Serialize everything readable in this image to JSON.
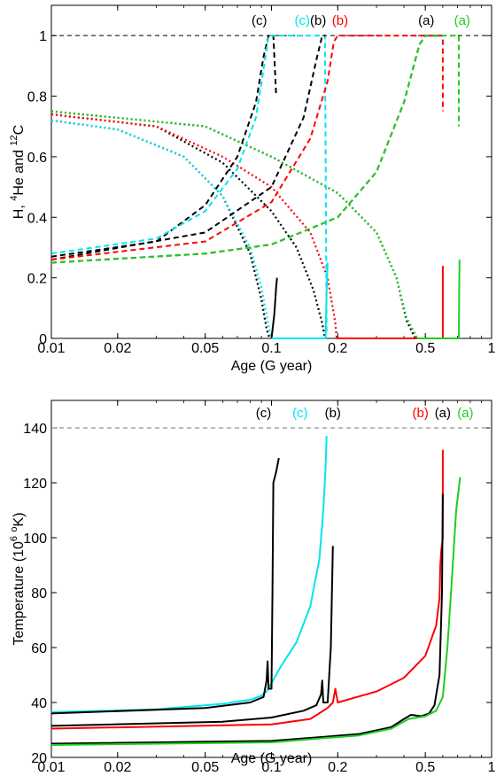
{
  "chart_data": [
    {
      "type": "line",
      "xlabel": "Age   (G year)",
      "ylabel": {
        "prefix": "H, ",
        "sup1": "4",
        "mid": "He and ",
        "sup2": "12",
        "suffix": "C"
      },
      "xscale": "log",
      "xlim": [
        0.01,
        1
      ],
      "ylim": [
        0,
        1.1
      ],
      "xticks": [
        {
          "v": 0.01,
          "label": "0.01"
        },
        {
          "v": 0.02,
          "label": "0.02"
        },
        {
          "v": 0.05,
          "label": "0.05"
        },
        {
          "v": 0.1,
          "label": "0.1"
        },
        {
          "v": 0.2,
          "label": "0.2"
        },
        {
          "v": 0.5,
          "label": "0.5"
        },
        {
          "v": 1,
          "label": "1"
        }
      ],
      "yticks": [
        {
          "v": 0,
          "label": "0"
        },
        {
          "v": 0.2,
          "label": "0.2"
        },
        {
          "v": 0.4,
          "label": "0.4"
        },
        {
          "v": 0.6,
          "label": "0.6"
        },
        {
          "v": 0.8,
          "label": "0.8"
        },
        {
          "v": 1,
          "label": "1"
        }
      ],
      "hline": 1.0,
      "grid": false,
      "annotations": [
        {
          "text": "(c)",
          "x": 0.088,
          "color": "#000000"
        },
        {
          "text": "(c)",
          "x": 0.138,
          "color": "#00e5ee"
        },
        {
          "text": "(b)",
          "x": 0.163,
          "color": "#000000"
        },
        {
          "text": "(b)",
          "x": 0.205,
          "color": "#ff0000"
        },
        {
          "text": "(a)",
          "x": 0.505,
          "color": "#000000"
        },
        {
          "text": "(a)",
          "x": 0.735,
          "color": "#22cc22"
        }
      ],
      "series": [
        {
          "color": "#000000",
          "dash": "dot",
          "points": [
            [
              0.01,
              0.72
            ],
            [
              0.02,
              0.69
            ],
            [
              0.04,
              0.6
            ],
            [
              0.06,
              0.47
            ],
            [
              0.08,
              0.28
            ],
            [
              0.09,
              0.13
            ],
            [
              0.095,
              0.03
            ],
            [
              0.098,
              0
            ]
          ]
        },
        {
          "color": "#00e5ee",
          "dash": "dot",
          "points": [
            [
              0.01,
              0.72
            ],
            [
              0.02,
              0.69
            ],
            [
              0.04,
              0.6
            ],
            [
              0.06,
              0.47
            ],
            [
              0.08,
              0.3
            ],
            [
              0.09,
              0.17
            ],
            [
              0.097,
              0.04
            ],
            [
              0.1,
              0
            ]
          ]
        },
        {
          "color": "#000000",
          "dash": "dot",
          "points": [
            [
              0.01,
              0.74
            ],
            [
              0.03,
              0.7
            ],
            [
              0.06,
              0.58
            ],
            [
              0.1,
              0.42
            ],
            [
              0.13,
              0.3
            ],
            [
              0.155,
              0.16
            ],
            [
              0.17,
              0.05
            ],
            [
              0.175,
              0
            ]
          ]
        },
        {
          "color": "#ff0000",
          "dash": "dot",
          "points": [
            [
              0.01,
              0.74
            ],
            [
              0.03,
              0.7
            ],
            [
              0.06,
              0.6
            ],
            [
              0.1,
              0.5
            ],
            [
              0.15,
              0.35
            ],
            [
              0.18,
              0.2
            ],
            [
              0.195,
              0.05
            ],
            [
              0.198,
              0
            ]
          ]
        },
        {
          "color": "#000000",
          "dash": "dot",
          "points": [
            [
              0.01,
              0.75
            ],
            [
              0.05,
              0.7
            ],
            [
              0.1,
              0.6
            ],
            [
              0.2,
              0.48
            ],
            [
              0.3,
              0.35
            ],
            [
              0.37,
              0.2
            ],
            [
              0.41,
              0.06
            ],
            [
              0.45,
              0
            ]
          ]
        },
        {
          "color": "#22cc22",
          "dash": "dot",
          "points": [
            [
              0.01,
              0.75
            ],
            [
              0.05,
              0.7
            ],
            [
              0.1,
              0.6
            ],
            [
              0.2,
              0.48
            ],
            [
              0.3,
              0.35
            ],
            [
              0.37,
              0.2
            ],
            [
              0.41,
              0.07
            ],
            [
              0.46,
              0
            ]
          ]
        },
        {
          "color": "#000000",
          "dash": "dash",
          "points": [
            [
              0.01,
              0.27
            ],
            [
              0.03,
              0.32
            ],
            [
              0.05,
              0.44
            ],
            [
              0.07,
              0.6
            ],
            [
              0.085,
              0.78
            ],
            [
              0.092,
              0.93
            ],
            [
              0.097,
              1
            ],
            [
              0.102,
              1
            ],
            [
              0.105,
              0.8
            ]
          ]
        },
        {
          "color": "#00e5ee",
          "dash": "dash",
          "points": [
            [
              0.01,
              0.28
            ],
            [
              0.03,
              0.33
            ],
            [
              0.05,
              0.42
            ],
            [
              0.07,
              0.56
            ],
            [
              0.085,
              0.73
            ],
            [
              0.093,
              0.91
            ],
            [
              0.097,
              1
            ],
            [
              0.175,
              1
            ],
            [
              0.178,
              0.02
            ]
          ]
        },
        {
          "color": "#000000",
          "dash": "dash",
          "points": [
            [
              0.01,
              0.26
            ],
            [
              0.05,
              0.35
            ],
            [
              0.1,
              0.5
            ],
            [
              0.14,
              0.73
            ],
            [
              0.16,
              0.92
            ],
            [
              0.17,
              1
            ],
            [
              0.176,
              1
            ]
          ]
        },
        {
          "color": "#ff0000",
          "dash": "dash",
          "points": [
            [
              0.01,
              0.26
            ],
            [
              0.05,
              0.32
            ],
            [
              0.1,
              0.45
            ],
            [
              0.15,
              0.66
            ],
            [
              0.18,
              0.85
            ],
            [
              0.192,
              0.98
            ],
            [
              0.2,
              1
            ],
            [
              0.6,
              1
            ],
            [
              0.6,
              0.75
            ]
          ]
        },
        {
          "color": "#000000",
          "dash": "dash",
          "points": [
            [
              0.01,
              0.25
            ],
            [
              0.05,
              0.28
            ],
            [
              0.1,
              0.31
            ],
            [
              0.2,
              0.4
            ],
            [
              0.3,
              0.55
            ],
            [
              0.4,
              0.78
            ],
            [
              0.47,
              0.97
            ],
            [
              0.5,
              1
            ],
            [
              0.6,
              1
            ]
          ]
        },
        {
          "color": "#22cc22",
          "dash": "dash",
          "points": [
            [
              0.01,
              0.25
            ],
            [
              0.05,
              0.28
            ],
            [
              0.1,
              0.31
            ],
            [
              0.2,
              0.4
            ],
            [
              0.3,
              0.55
            ],
            [
              0.4,
              0.78
            ],
            [
              0.47,
              0.97
            ],
            [
              0.5,
              1
            ],
            [
              0.71,
              1
            ],
            [
              0.71,
              0.7
            ]
          ]
        },
        {
          "color": "#000000",
          "dash": "solid",
          "points": [
            [
              0.1,
              0
            ],
            [
              0.103,
              0.08
            ],
            [
              0.105,
              0.17
            ],
            [
              0.106,
              0.2
            ]
          ]
        },
        {
          "color": "#00e5ee",
          "dash": "solid",
          "points": [
            [
              0.1,
              0
            ],
            [
              0.176,
              0
            ],
            [
              0.178,
              0.15
            ],
            [
              0.18,
              0.25
            ]
          ]
        },
        {
          "color": "#ff0000",
          "dash": "solid",
          "points": [
            [
              0.198,
              0
            ],
            [
              0.6,
              0
            ],
            [
              0.6,
              0.1
            ],
            [
              0.6,
              0.24
            ]
          ]
        },
        {
          "color": "#22cc22",
          "dash": "solid",
          "points": [
            [
              0.46,
              0
            ],
            [
              0.71,
              0
            ],
            [
              0.712,
              0.12
            ],
            [
              0.715,
              0.26
            ]
          ]
        }
      ]
    },
    {
      "type": "line",
      "xlabel": "Age   (G year)",
      "ylabel": {
        "prefix": "Temperature (10",
        "sup1": "6",
        "mid": " ",
        "sup2": "o",
        "suffix": "K)"
      },
      "xscale": "log",
      "xlim": [
        0.01,
        1
      ],
      "ylim": [
        20,
        150
      ],
      "xticks": [
        {
          "v": 0.01,
          "label": "0.01"
        },
        {
          "v": 0.02,
          "label": "0.02"
        },
        {
          "v": 0.05,
          "label": "0.05"
        },
        {
          "v": 0.1,
          "label": "0.1"
        },
        {
          "v": 0.2,
          "label": "0.2"
        },
        {
          "v": 0.5,
          "label": "0.5"
        },
        {
          "v": 1,
          "label": "1"
        }
      ],
      "yticks": [
        {
          "v": 20,
          "label": "20"
        },
        {
          "v": 40,
          "label": "40"
        },
        {
          "v": 60,
          "label": "60"
        },
        {
          "v": 80,
          "label": "80"
        },
        {
          "v": 100,
          "label": "100"
        },
        {
          "v": 120,
          "label": "120"
        },
        {
          "v": 140,
          "label": "140"
        }
      ],
      "hline": 140,
      "grid": false,
      "annotations": [
        {
          "text": "(c)",
          "x": 0.092,
          "color": "#000000"
        },
        {
          "text": "(c)",
          "x": 0.135,
          "color": "#00e5ee"
        },
        {
          "text": "(b)",
          "x": 0.19,
          "color": "#000000"
        },
        {
          "text": "(b)",
          "x": 0.475,
          "color": "#ff0000"
        },
        {
          "text": "(a)",
          "x": 0.6,
          "color": "#000000"
        },
        {
          "text": "(a)",
          "x": 0.76,
          "color": "#22cc22"
        }
      ],
      "series": [
        {
          "color": "#00e5ee",
          "dash": "solid",
          "points": [
            [
              0.01,
              36.5
            ],
            [
              0.03,
              37.5
            ],
            [
              0.06,
              39.5
            ],
            [
              0.08,
              41
            ],
            [
              0.09,
              42.5
            ],
            [
              0.095,
              44
            ],
            [
              0.1,
              47
            ],
            [
              0.11,
              53
            ],
            [
              0.13,
              62
            ],
            [
              0.15,
              75
            ],
            [
              0.165,
              92
            ],
            [
              0.172,
              110
            ],
            [
              0.176,
              125
            ],
            [
              0.178,
              137
            ]
          ]
        },
        {
          "color": "#000000",
          "dash": "solid",
          "points": [
            [
              0.01,
              36
            ],
            [
              0.05,
              38
            ],
            [
              0.08,
              40
            ],
            [
              0.092,
              42
            ],
            [
              0.095,
              48
            ],
            [
              0.096,
              55
            ],
            [
              0.097,
              45
            ],
            [
              0.1,
              45
            ],
            [
              0.101,
              80
            ],
            [
              0.102,
              120
            ],
            [
              0.105,
              124
            ],
            [
              0.108,
              129
            ]
          ]
        },
        {
          "color": "#000000",
          "dash": "solid",
          "points": [
            [
              0.01,
              31.5
            ],
            [
              0.06,
              33
            ],
            [
              0.1,
              34.5
            ],
            [
              0.14,
              37
            ],
            [
              0.16,
              39
            ],
            [
              0.168,
              43
            ],
            [
              0.17,
              48
            ],
            [
              0.172,
              40
            ],
            [
              0.18,
              40
            ],
            [
              0.186,
              60
            ],
            [
              0.19,
              97
            ]
          ]
        },
        {
          "color": "#ff0000",
          "dash": "solid",
          "points": [
            [
              0.01,
              30.5
            ],
            [
              0.1,
              32
            ],
            [
              0.15,
              34
            ],
            [
              0.18,
              38
            ],
            [
              0.19,
              40
            ],
            [
              0.195,
              45
            ],
            [
              0.2,
              40
            ],
            [
              0.3,
              44
            ],
            [
              0.4,
              49
            ],
            [
              0.5,
              57
            ],
            [
              0.56,
              68
            ],
            [
              0.58,
              78
            ],
            [
              0.585,
              90
            ],
            [
              0.59,
              95
            ],
            [
              0.6,
              100
            ],
            [
              0.6,
              132
            ]
          ]
        },
        {
          "color": "#000000",
          "dash": "solid",
          "points": [
            [
              0.01,
              25
            ],
            [
              0.1,
              26
            ],
            [
              0.25,
              28.5
            ],
            [
              0.35,
              31
            ],
            [
              0.4,
              34
            ],
            [
              0.43,
              35.5
            ],
            [
              0.48,
              35
            ],
            [
              0.52,
              36
            ],
            [
              0.55,
              39
            ],
            [
              0.58,
              50
            ],
            [
              0.595,
              80
            ],
            [
              0.6,
              116
            ]
          ]
        },
        {
          "color": "#22cc22",
          "dash": "solid",
          "points": [
            [
              0.01,
              24.5
            ],
            [
              0.1,
              25.5
            ],
            [
              0.25,
              28
            ],
            [
              0.35,
              30.5
            ],
            [
              0.42,
              34
            ],
            [
              0.5,
              35
            ],
            [
              0.56,
              37
            ],
            [
              0.6,
              42
            ],
            [
              0.63,
              60
            ],
            [
              0.66,
              85
            ],
            [
              0.69,
              110
            ],
            [
              0.72,
              122
            ]
          ]
        }
      ]
    }
  ]
}
